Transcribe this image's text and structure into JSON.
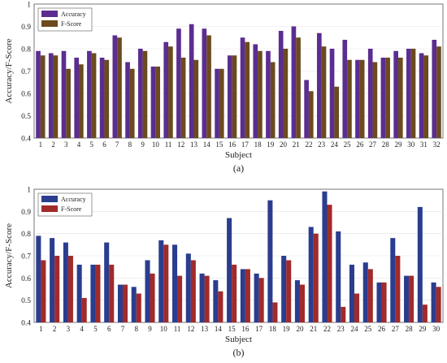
{
  "chart_data": [
    {
      "type": "bar",
      "panel_label": "(a)",
      "title": "",
      "xlabel": "Subject",
      "ylabel": "Accuracy/F-Score",
      "ylim": [
        0.4,
        1.0
      ],
      "yticks": [
        "0.4",
        "0.5",
        "0.6",
        "0.7",
        "0.8",
        "0.9",
        "1"
      ],
      "legend_position": "top-left",
      "categories": [
        "1",
        "2",
        "3",
        "4",
        "5",
        "6",
        "7",
        "8",
        "9",
        "10",
        "11",
        "12",
        "13",
        "14",
        "15",
        "16",
        "17",
        "18",
        "19",
        "20",
        "21",
        "22",
        "23",
        "24",
        "25",
        "26",
        "27",
        "28",
        "29",
        "30",
        "31",
        "32"
      ],
      "series": [
        {
          "name": "Accuracy",
          "color": "#5b2d91",
          "values": [
            0.79,
            0.78,
            0.79,
            0.76,
            0.79,
            0.76,
            0.86,
            0.74,
            0.8,
            0.72,
            0.83,
            0.89,
            0.91,
            0.89,
            0.71,
            0.77,
            0.85,
            0.82,
            0.79,
            0.88,
            0.9,
            0.66,
            0.87,
            0.8,
            0.84,
            0.75,
            0.8,
            0.76,
            0.79,
            0.8,
            0.78,
            0.84
          ]
        },
        {
          "name": "F-Score",
          "color": "#6b4a1e",
          "values": [
            0.77,
            0.77,
            0.71,
            0.73,
            0.78,
            0.75,
            0.85,
            0.71,
            0.79,
            0.72,
            0.81,
            0.76,
            0.75,
            0.86,
            0.71,
            0.77,
            0.83,
            0.79,
            0.74,
            0.8,
            0.85,
            0.61,
            0.81,
            0.63,
            0.75,
            0.75,
            0.74,
            0.76,
            0.76,
            0.8,
            0.77,
            0.81
          ]
        }
      ]
    },
    {
      "type": "bar",
      "panel_label": "(b)",
      "title": "",
      "xlabel": "Subject",
      "ylabel": "Accuracy/F-Score",
      "ylim": [
        0.4,
        1.0
      ],
      "yticks": [
        "0.4",
        "0.5",
        "0.6",
        "0.7",
        "0.8",
        "0.9",
        "1"
      ],
      "legend_position": "top-left",
      "categories": [
        "1",
        "2",
        "3",
        "4",
        "5",
        "6",
        "7",
        "8",
        "9",
        "10",
        "11",
        "12",
        "13",
        "14",
        "15",
        "16",
        "17",
        "18",
        "19",
        "20",
        "21",
        "22",
        "23",
        "24",
        "25",
        "26",
        "27",
        "28",
        "29",
        "30"
      ],
      "series": [
        {
          "name": "Accuracy",
          "color": "#2a3d8f",
          "values": [
            0.79,
            0.78,
            0.76,
            0.66,
            0.66,
            0.76,
            0.57,
            0.56,
            0.68,
            0.77,
            0.75,
            0.71,
            0.62,
            0.59,
            0.87,
            0.64,
            0.62,
            0.95,
            0.7,
            0.59,
            0.83,
            0.99,
            0.81,
            0.66,
            0.67,
            0.58,
            0.78,
            0.61,
            0.92,
            0.58
          ]
        },
        {
          "name": "F-Score",
          "color": "#a12a2a",
          "values": [
            0.68,
            0.7,
            0.7,
            0.51,
            0.66,
            0.66,
            0.57,
            0.53,
            0.62,
            0.75,
            0.61,
            0.68,
            0.61,
            0.54,
            0.66,
            0.64,
            0.6,
            0.49,
            0.68,
            0.57,
            0.8,
            0.93,
            0.47,
            0.53,
            0.64,
            0.58,
            0.7,
            0.61,
            0.48,
            0.56
          ]
        }
      ]
    }
  ]
}
